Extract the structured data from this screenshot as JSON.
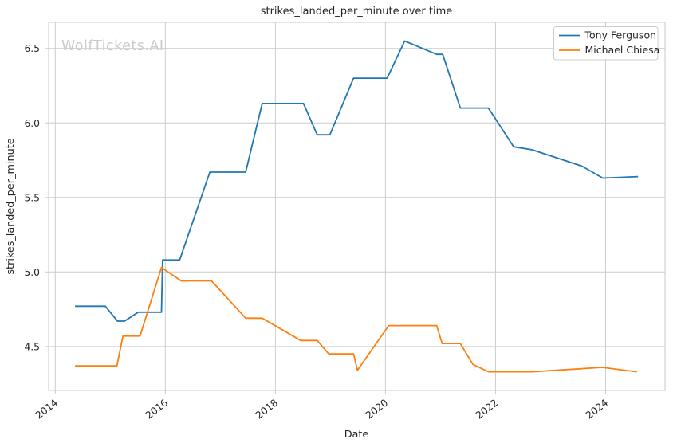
{
  "watermark": "WolfTickets.AI",
  "chart_data": {
    "type": "line",
    "title": "strikes_landed_per_minute over time",
    "xlabel": "Date",
    "ylabel": "strikes_landed_per_minute",
    "xlim": [
      2013.88,
      2025.08
    ],
    "ylim": [
      4.205,
      6.675
    ],
    "grid": true,
    "legend_position": "upper right",
    "x_ticks": [
      {
        "value": 2014,
        "label": "2014"
      },
      {
        "value": 2016,
        "label": "2016"
      },
      {
        "value": 2018,
        "label": "2018"
      },
      {
        "value": 2020,
        "label": "2020"
      },
      {
        "value": 2022,
        "label": "2022"
      },
      {
        "value": 2024,
        "label": "2024"
      }
    ],
    "y_ticks": [
      {
        "value": 4.5,
        "label": "4.5"
      },
      {
        "value": 5.0,
        "label": "5.0"
      },
      {
        "value": 5.5,
        "label": "5.5"
      },
      {
        "value": 6.0,
        "label": "6.0"
      },
      {
        "value": 6.5,
        "label": "6.5"
      }
    ],
    "series": [
      {
        "name": "Tony Ferguson",
        "color": "#1f77b4",
        "points": [
          [
            2014.36,
            4.77
          ],
          [
            2014.91,
            4.77
          ],
          [
            2015.13,
            4.67
          ],
          [
            2015.26,
            4.67
          ],
          [
            2015.51,
            4.73
          ],
          [
            2015.93,
            4.73
          ],
          [
            2015.95,
            5.08
          ],
          [
            2016.26,
            5.08
          ],
          [
            2016.81,
            5.67
          ],
          [
            2017.46,
            5.67
          ],
          [
            2017.76,
            6.13
          ],
          [
            2018.51,
            6.13
          ],
          [
            2018.76,
            5.92
          ],
          [
            2018.99,
            5.92
          ],
          [
            2019.42,
            6.3
          ],
          [
            2020.03,
            6.3
          ],
          [
            2020.35,
            6.55
          ],
          [
            2020.93,
            6.46
          ],
          [
            2021.04,
            6.46
          ],
          [
            2021.36,
            6.1
          ],
          [
            2021.87,
            6.1
          ],
          [
            2022.33,
            5.84
          ],
          [
            2022.66,
            5.82
          ],
          [
            2023.57,
            5.71
          ],
          [
            2023.95,
            5.63
          ],
          [
            2024.59,
            5.64
          ]
        ]
      },
      {
        "name": "Michael Chiesa",
        "color": "#ff7f0e",
        "points": [
          [
            2014.36,
            4.37
          ],
          [
            2015.12,
            4.37
          ],
          [
            2015.23,
            4.57
          ],
          [
            2015.54,
            4.57
          ],
          [
            2015.93,
            5.03
          ],
          [
            2016.29,
            4.94
          ],
          [
            2016.84,
            4.94
          ],
          [
            2017.46,
            4.69
          ],
          [
            2017.76,
            4.69
          ],
          [
            2018.46,
            4.54
          ],
          [
            2018.76,
            4.54
          ],
          [
            2018.97,
            4.45
          ],
          [
            2019.42,
            4.45
          ],
          [
            2019.49,
            4.34
          ],
          [
            2020.06,
            4.64
          ],
          [
            2020.93,
            4.64
          ],
          [
            2021.03,
            4.52
          ],
          [
            2021.36,
            4.52
          ],
          [
            2021.59,
            4.38
          ],
          [
            2021.87,
            4.33
          ],
          [
            2022.67,
            4.33
          ],
          [
            2023.1,
            4.34
          ],
          [
            2023.94,
            4.36
          ],
          [
            2024.57,
            4.33
          ]
        ]
      }
    ],
    "style": {
      "grid_color": "#cccccc",
      "spine_color": "#c9c9c9",
      "text_color": "#262626",
      "watermark_color": "#cbcbcb",
      "line_width": 1.8
    }
  }
}
